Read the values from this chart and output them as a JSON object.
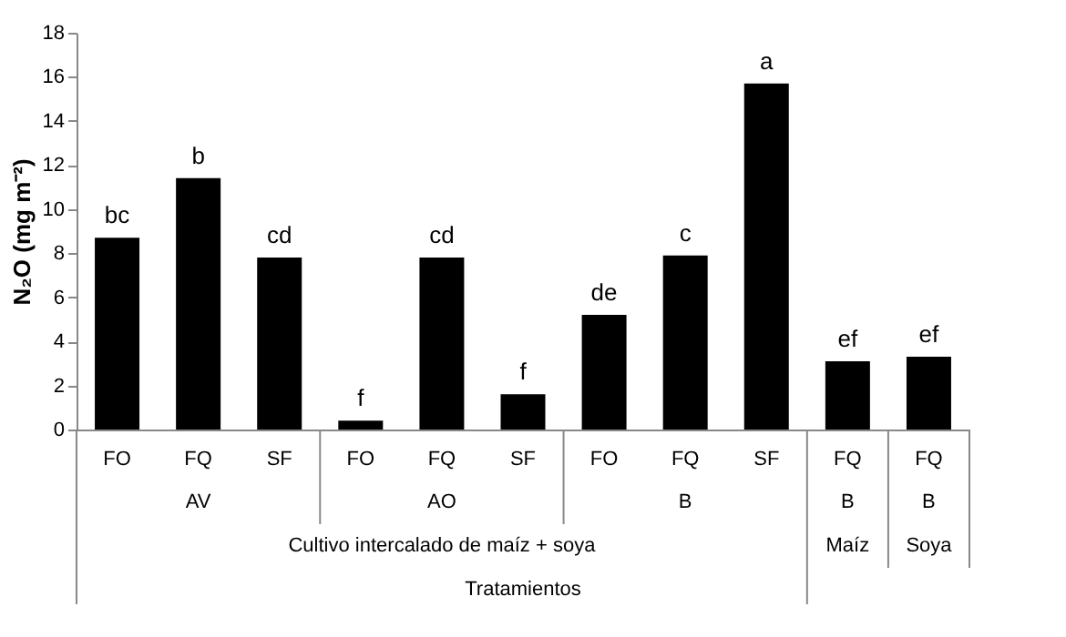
{
  "chart_data": {
    "type": "bar",
    "categories": [
      "FO",
      "FQ",
      "SF",
      "FO",
      "FQ",
      "SF",
      "FO",
      "FQ",
      "SF",
      "FQ",
      "FQ"
    ],
    "values": [
      8.7,
      11.4,
      7.8,
      0.4,
      7.8,
      1.6,
      5.2,
      7.9,
      15.7,
      3.1,
      3.3
    ],
    "value_labels": [
      "bc",
      "b",
      "cd",
      "f",
      "cd",
      "f",
      "de",
      "c",
      "a",
      "ef",
      "ef"
    ],
    "color": "#000000",
    "ylabel": "N₂O (mg m⁻²)",
    "annotations": [
      "AV",
      "AO",
      "B",
      "B",
      "B",
      "Cultivo intercalado de maíz + soya",
      "Maíz",
      "Soya",
      "Tratamientos"
    ],
    "ylim": [
      0,
      18
    ],
    "yticks": [
      0,
      2,
      4,
      6,
      8,
      10,
      12,
      14,
      16,
      18
    ],
    "grid": false
  }
}
